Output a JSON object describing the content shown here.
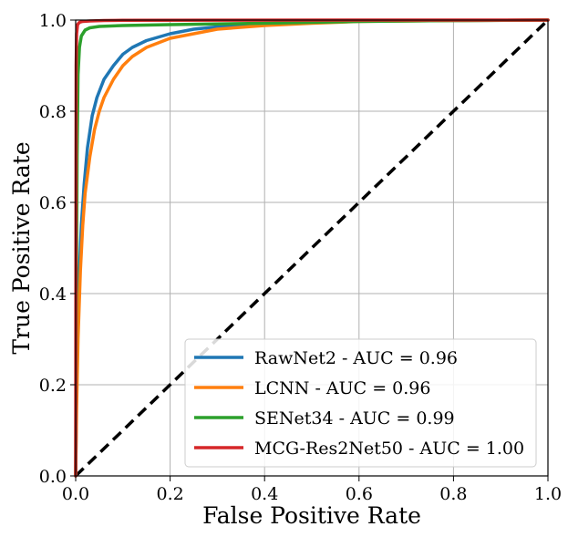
{
  "chart_data": {
    "type": "line",
    "title": "",
    "xlabel": "False Positive Rate",
    "ylabel": "True Positive Rate",
    "xlim": [
      0,
      1
    ],
    "ylim": [
      0,
      1
    ],
    "xticks": [
      0.0,
      0.2,
      0.4,
      0.6,
      0.8,
      1.0
    ],
    "xtick_labels": [
      "0.0",
      "0.2",
      "0.4",
      "0.6",
      "0.8",
      "1.0"
    ],
    "yticks": [
      0.0,
      0.2,
      0.4,
      0.6,
      0.8,
      1.0
    ],
    "ytick_labels": [
      "0.0",
      "0.2",
      "0.4",
      "0.6",
      "0.8",
      "1.0"
    ],
    "grid": true,
    "legend_position": "lower-right",
    "series": [
      {
        "name": "RawNet2 - AUC = 0.96",
        "color": "#1f77b4",
        "x": [
          0,
          0.002,
          0.005,
          0.008,
          0.012,
          0.018,
          0.025,
          0.035,
          0.045,
          0.06,
          0.08,
          0.1,
          0.12,
          0.15,
          0.2,
          0.25,
          0.3,
          0.4,
          0.5,
          0.6,
          0.8,
          1.0
        ],
        "y": [
          0,
          0.2,
          0.35,
          0.45,
          0.55,
          0.64,
          0.72,
          0.79,
          0.83,
          0.87,
          0.9,
          0.925,
          0.94,
          0.955,
          0.97,
          0.98,
          0.985,
          0.99,
          0.995,
          0.998,
          0.999,
          1.0
        ]
      },
      {
        "name": "LCNN - AUC = 0.96",
        "color": "#ff7f0e",
        "x": [
          0,
          0.002,
          0.005,
          0.01,
          0.015,
          0.02,
          0.03,
          0.04,
          0.05,
          0.06,
          0.08,
          0.1,
          0.12,
          0.15,
          0.2,
          0.25,
          0.3,
          0.4,
          0.5,
          0.6,
          0.8,
          1.0
        ],
        "y": [
          0,
          0.15,
          0.3,
          0.45,
          0.55,
          0.62,
          0.7,
          0.76,
          0.8,
          0.83,
          0.87,
          0.9,
          0.92,
          0.94,
          0.96,
          0.97,
          0.98,
          0.988,
          0.993,
          0.997,
          0.999,
          1.0
        ]
      },
      {
        "name": "SENet34 - AUC = 0.99",
        "color": "#2ca02c",
        "x": [
          0,
          0.001,
          0.003,
          0.005,
          0.008,
          0.012,
          0.02,
          0.03,
          0.05,
          0.1,
          0.2,
          0.4,
          0.6,
          0.8,
          1.0
        ],
        "y": [
          0,
          0.3,
          0.7,
          0.88,
          0.94,
          0.965,
          0.978,
          0.983,
          0.986,
          0.988,
          0.99,
          0.993,
          0.997,
          0.999,
          1.0
        ]
      },
      {
        "name": "MCG-Res2Net50 - AUC = 1.00",
        "color": "#d62728",
        "x": [
          0,
          0.0005,
          0.001,
          0.002,
          0.004,
          0.008,
          0.015,
          0.03,
          0.06,
          0.1,
          0.3,
          0.6,
          1.0
        ],
        "y": [
          0,
          0.5,
          0.9,
          0.97,
          0.99,
          0.995,
          0.997,
          0.998,
          0.999,
          0.9995,
          0.9998,
          0.9999,
          1.0
        ]
      }
    ],
    "reference_line": {
      "x": [
        0,
        1
      ],
      "y": [
        0,
        1
      ],
      "style": "dashed",
      "color": "#000000"
    }
  }
}
